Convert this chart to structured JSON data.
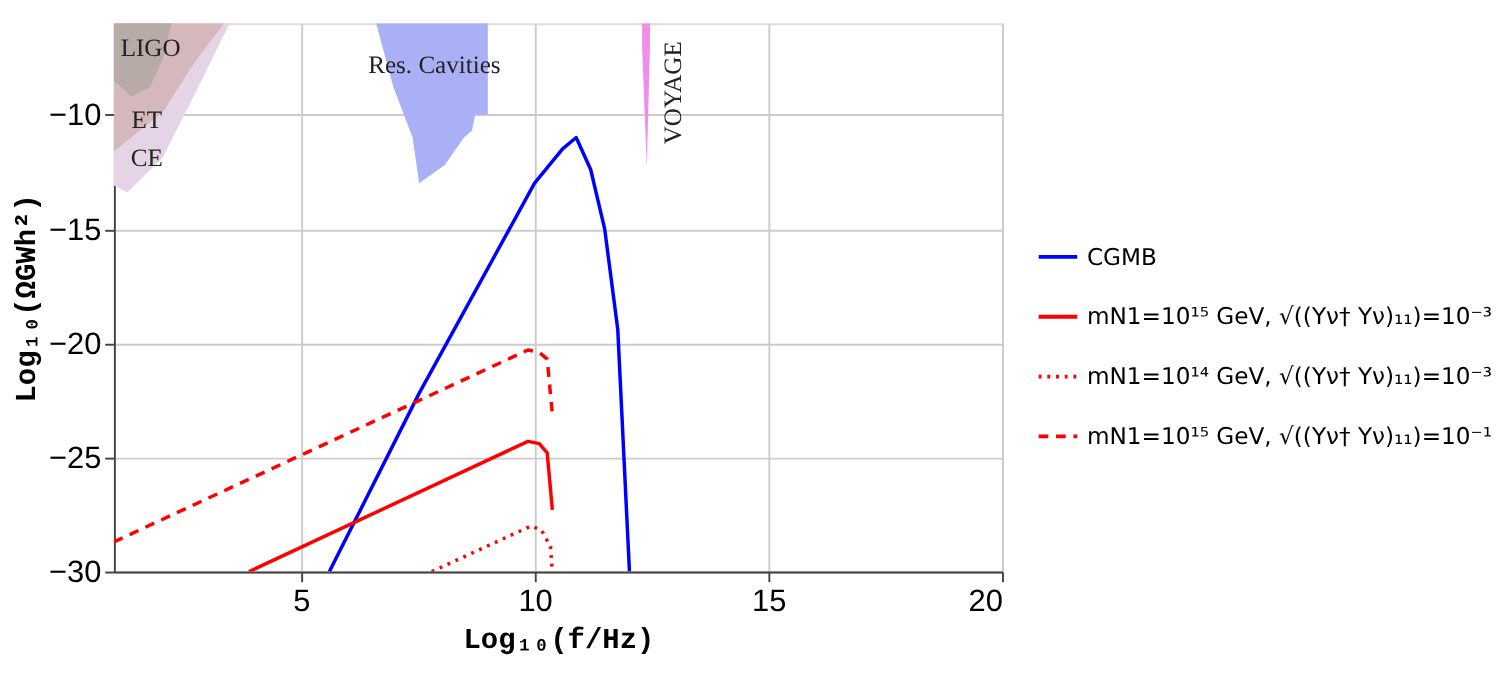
{
  "chart_data": {
    "type": "line",
    "xlabel": "Log₁₀(f/Hz)",
    "ylabel": "Log₁₀(ΩGWh²)",
    "xlim": [
      1,
      20
    ],
    "ylim": [
      -30,
      -6
    ],
    "xticks": [
      5,
      10,
      15,
      20
    ],
    "yticks": [
      -30,
      -25,
      -20,
      -15,
      -10
    ],
    "grid": true,
    "legend": "right",
    "series": [
      {
        "type": "area",
        "color": "#e4d4e6",
        "x": [
          1,
          1.29,
          2.04,
          2.73,
          3.48
        ],
        "values": [
          -13.1,
          -13.4,
          -11.9,
          -9.1,
          -6
        ]
      },
      {
        "type": "area",
        "color": "#d4b8bb",
        "x": [
          1,
          2.04,
          2.73,
          3.36
        ],
        "values": [
          -11.6,
          -9.9,
          -7.7,
          -6
        ]
      },
      {
        "type": "area",
        "color": "#b8aaa6",
        "x": [
          1,
          1.37,
          1.77,
          2.08,
          2.23
        ],
        "values": [
          -8.5,
          -9.2,
          -8.8,
          -7.4,
          -6
        ]
      },
      {
        "type": "area",
        "color": "#aab0f5",
        "x": [
          6.61,
          6.98,
          7.39,
          7.53,
          8.08,
          8.49,
          8.66,
          8.73,
          9.0
        ],
        "values": [
          -6,
          -8.8,
          -11.0,
          -13.0,
          -12.2,
          -11.0,
          -10.7,
          -10.0,
          -10.0
        ]
      },
      {
        "type": "area",
        "color": "#f08ee8",
        "x": [
          12.3,
          12.4,
          12.47
        ],
        "values": [
          -7,
          -12.3,
          -7
        ]
      },
      {
        "name": "CGMB",
        "color": "#0000ff",
        "line_style": "solid",
        "x": [
          5.61,
          7.53,
          10.0,
          10.6,
          10.89,
          11.2,
          11.5,
          11.78,
          12.03
        ],
        "values": [
          -30,
          -22.2,
          -13.0,
          -11.5,
          -11.0,
          -12.4,
          -15.0,
          -19.4,
          -30
        ]
      },
      {
        "name": "mN1=10¹⁵ GeV, √((Yν† Yν)₁₁)=10⁻³",
        "color": "#ff0000",
        "line_style": "solid",
        "x": [
          3.89,
          9.86,
          10.1,
          10.27,
          10.38
        ],
        "values": [
          -30,
          -24.3,
          -24.4,
          -24.8,
          -27.3
        ]
      },
      {
        "name": "mN1=10¹⁴ GeV, √((Yν† Yν)₁₁)=10⁻³",
        "color": "#ff0000",
        "line_style": "dotted",
        "x": [
          7.8,
          9.93,
          10.15,
          10.34,
          10.38
        ],
        "values": [
          -30,
          -28.0,
          -28.2,
          -28.9,
          -30
        ]
      },
      {
        "name": "mN1=10¹⁵ GeV, √((Yν† Yν)₁₁)=10⁻¹",
        "color": "#ff0000",
        "line_style": "dashed",
        "x": [
          1,
          9.86,
          10.1,
          10.27,
          10.38
        ],
        "values": [
          -28.7,
          -20.3,
          -20.4,
          -20.7,
          -23.1
        ]
      }
    ],
    "annotations": [
      "LIGO",
      "ET",
      "CE",
      "Res. Cavities",
      "VOYAGE"
    ]
  }
}
